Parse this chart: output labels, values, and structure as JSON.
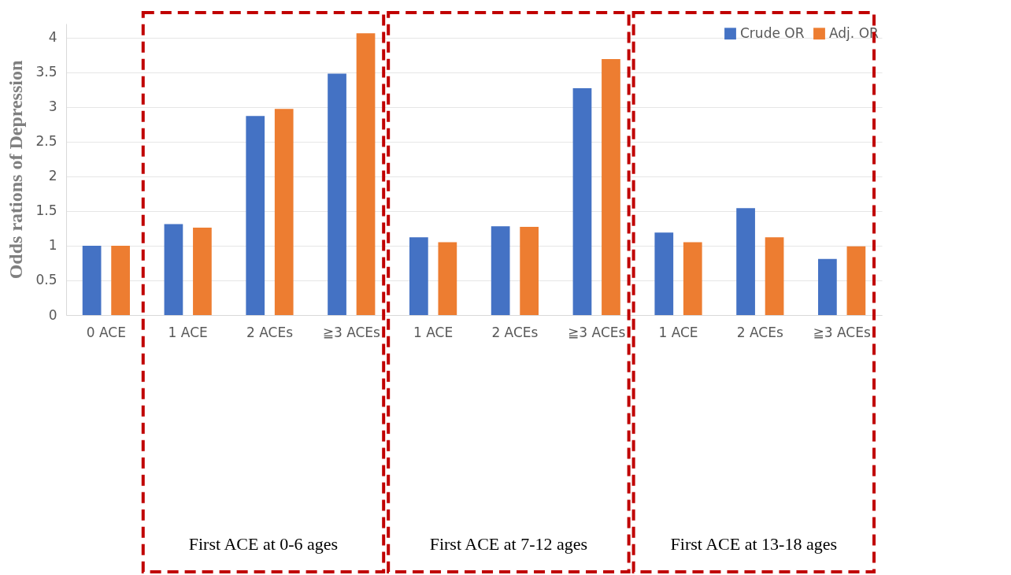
{
  "chart_data": {
    "type": "bar",
    "ylabel": "Odds rations of Depression",
    "categories": [
      "0 ACE",
      "1 ACE",
      "2 ACEs",
      "≧3 ACEs",
      "1 ACE",
      "2 ACEs",
      "≧3 ACEs",
      "1 ACE",
      "2 ACEs",
      "≧3 ACEs"
    ],
    "series": [
      {
        "name": "Crude OR",
        "color": "#4472c4",
        "values": [
          1.0,
          1.31,
          2.87,
          3.48,
          1.12,
          1.28,
          3.27,
          1.19,
          1.54,
          0.81
        ]
      },
      {
        "name": "Adj. OR",
        "color": "#ed7d31",
        "values": [
          1.0,
          1.26,
          2.97,
          4.06,
          1.05,
          1.27,
          3.69,
          1.05,
          1.12,
          0.99
        ]
      }
    ],
    "ylim": [
      0,
      4.2
    ],
    "yticks": [
      0,
      0.5,
      1,
      1.5,
      2,
      2.5,
      3,
      3.5,
      4
    ],
    "grid": "y",
    "legend": "top right",
    "annotations": [
      "First ACE at 0-6 ages",
      "First ACE at 7-12 ages",
      "First ACE at 13-18 ages"
    ]
  }
}
